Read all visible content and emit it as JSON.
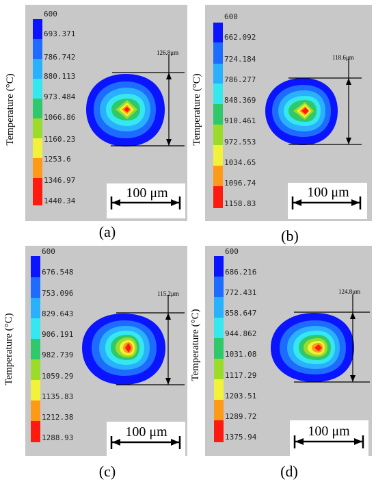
{
  "figure": {
    "colors": {
      "panel_bg": "#c8c8c8",
      "colormap": [
        "#0a14ff",
        "#1e6bff",
        "#29b0ff",
        "#35e8f0",
        "#2fc86b",
        "#9bdc2a",
        "#f2f23a",
        "#ff9a18",
        "#ff1a10"
      ]
    },
    "panels": [
      {
        "label": "(a)",
        "y_axis_label": "Temperature (°C)",
        "colorbar": [
          "600",
          "693.371",
          "786.742",
          "880.113",
          "973.484",
          "1066.86",
          "1160.23",
          "1253.6",
          "1346.97",
          "1440.34"
        ],
        "dimension": "126.8μm",
        "scale_bar": "100 μm"
      },
      {
        "label": "(b)",
        "y_axis_label": "Temperature (°C)",
        "colorbar": [
          "600",
          "662.092",
          "724.184",
          "786.277",
          "848.369",
          "910.461",
          "972.553",
          "1034.65",
          "1096.74",
          "1158.83"
        ],
        "dimension": "118.6μm",
        "scale_bar": "100 μm"
      },
      {
        "label": "(c)",
        "y_axis_label": "Temperature (°C)",
        "colorbar": [
          "600",
          "676.548",
          "753.096",
          "829.643",
          "906.191",
          "982.739",
          "1059.29",
          "1135.83",
          "1212.38",
          "1288.93"
        ],
        "dimension": "115.2μm",
        "scale_bar": "100 μm"
      },
      {
        "label": "(d)",
        "y_axis_label": "Temperature (°C)",
        "colorbar": [
          "600",
          "686.216",
          "772.431",
          "858.647",
          "944.862",
          "1031.08",
          "1117.29",
          "1203.51",
          "1289.72",
          "1375.94"
        ],
        "dimension": "124.8μm",
        "scale_bar": "100 μm"
      }
    ]
  }
}
